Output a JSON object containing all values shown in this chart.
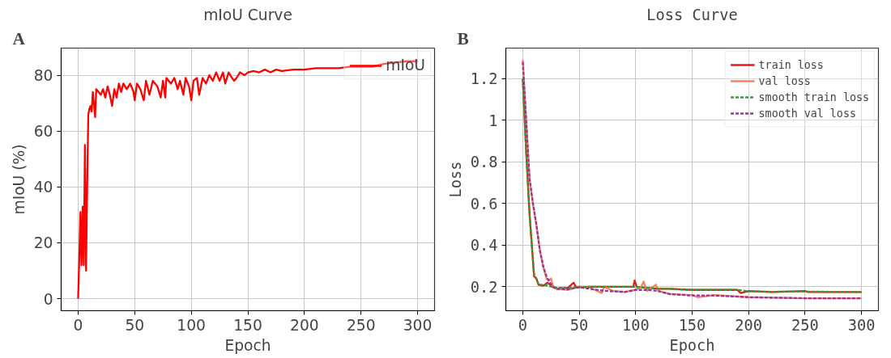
{
  "chart_data": [
    {
      "type": "line",
      "title": "mIoU Curve",
      "xlabel": "Epoch",
      "ylabel": "mIoU (%)",
      "annotations": [
        "A"
      ],
      "xlim": [
        -15,
        315
      ],
      "ylim": [
        -4.3,
        89.7
      ],
      "xticks": [
        0,
        50,
        100,
        150,
        200,
        250,
        300
      ],
      "yticks": [
        0,
        20,
        40,
        60,
        80
      ],
      "grid": true,
      "legend": "top right",
      "line_style": "solid",
      "marker": "none",
      "series": [
        {
          "name": "mIoU",
          "color": "#ff0000",
          "x": [
            0,
            1,
            2,
            3,
            4,
            5,
            6,
            7,
            8,
            9,
            10,
            11,
            12,
            13,
            14,
            15,
            16,
            18,
            20,
            22,
            24,
            26,
            28,
            30,
            32,
            34,
            36,
            38,
            40,
            43,
            46,
            49,
            50,
            52,
            55,
            58,
            60,
            63,
            66,
            70,
            73,
            75,
            77,
            78,
            82,
            85,
            88,
            90,
            93,
            95,
            98,
            100,
            102,
            105,
            107,
            110,
            113,
            116,
            119,
            122,
            125,
            128,
            130,
            133,
            136,
            138,
            140,
            143,
            147,
            150,
            155,
            160,
            165,
            170,
            175,
            180,
            190,
            200,
            210,
            220,
            230,
            240,
            250,
            260,
            270,
            280,
            290,
            300
          ],
          "values": [
            0,
            14,
            31,
            12,
            33,
            12,
            55,
            10,
            40,
            66,
            68,
            69,
            67,
            74,
            70,
            65,
            75,
            74,
            73,
            75,
            72,
            76,
            73,
            69,
            75,
            72,
            77,
            74,
            77,
            75,
            77,
            74,
            71,
            77,
            75,
            71,
            78,
            73,
            78,
            76,
            72,
            78,
            72,
            79,
            77,
            79,
            75,
            78,
            73,
            79,
            76,
            71,
            78,
            79,
            73,
            79,
            77,
            80,
            78,
            81,
            78,
            81,
            77,
            81,
            79,
            78,
            79,
            81,
            80,
            81,
            81.5,
            81,
            82,
            81,
            82,
            81.5,
            82,
            82,
            82.5,
            82.5,
            82.5,
            83,
            83,
            83,
            84,
            84.5,
            85,
            85
          ]
        }
      ]
    },
    {
      "type": "line",
      "title": "Loss Curve",
      "xlabel": "Epoch",
      "ylabel": "Loss",
      "annotations": [
        "B"
      ],
      "xlim": [
        -15,
        315
      ],
      "ylim": [
        0.085,
        1.347
      ],
      "xticks": [
        0,
        50,
        100,
        150,
        200,
        250,
        300
      ],
      "yticks": [
        0.2,
        0.4,
        0.6,
        0.8,
        1.0,
        1.2
      ],
      "grid": true,
      "legend": "top right",
      "marker": "none",
      "series": [
        {
          "name": "train loss",
          "color": "#e41a1c",
          "line_style": "solid",
          "x": [
            0,
            3,
            6,
            8,
            10,
            12,
            14,
            18,
            22,
            26,
            30,
            40,
            45,
            47,
            60,
            70,
            80,
            90,
            98,
            99,
            101,
            110,
            120,
            130,
            150,
            170,
            190,
            193,
            200,
            220,
            250,
            252,
            270,
            300
          ],
          "values": [
            1.2,
            0.85,
            0.55,
            0.4,
            0.25,
            0.24,
            0.21,
            0.205,
            0.22,
            0.2,
            0.19,
            0.195,
            0.22,
            0.2,
            0.2,
            0.2,
            0.2,
            0.2,
            0.2,
            0.23,
            0.2,
            0.195,
            0.19,
            0.19,
            0.185,
            0.185,
            0.185,
            0.17,
            0.18,
            0.175,
            0.18,
            0.175,
            0.175,
            0.175
          ]
        },
        {
          "name": "val loss",
          "color": "#f4845f",
          "line_style": "solid",
          "x": [
            0,
            3,
            6,
            9,
            12,
            15,
            18,
            21,
            23,
            25,
            27,
            30,
            40,
            50,
            60,
            70,
            72,
            80,
            90,
            100,
            105,
            107,
            110,
            118,
            120,
            130,
            150,
            155,
            170,
            200,
            250,
            300
          ],
          "values": [
            1.29,
            1.0,
            0.72,
            0.6,
            0.5,
            0.38,
            0.3,
            0.24,
            0.23,
            0.24,
            0.2,
            0.19,
            0.185,
            0.2,
            0.195,
            0.17,
            0.2,
            0.18,
            0.175,
            0.185,
            0.2,
            0.225,
            0.18,
            0.21,
            0.18,
            0.165,
            0.16,
            0.15,
            0.16,
            0.15,
            0.145,
            0.145
          ]
        },
        {
          "name": "smooth train loss",
          "color": "#2ca02c",
          "line_style": "dashed",
          "x": [
            0,
            3,
            6,
            8,
            10,
            12,
            14,
            18,
            26,
            30,
            40,
            60,
            80,
            100,
            120,
            130,
            150,
            170,
            190,
            200,
            220,
            250,
            300
          ],
          "values": [
            1.2,
            0.85,
            0.55,
            0.4,
            0.26,
            0.24,
            0.21,
            0.21,
            0.2,
            0.195,
            0.195,
            0.2,
            0.2,
            0.2,
            0.19,
            0.19,
            0.185,
            0.185,
            0.185,
            0.178,
            0.176,
            0.177,
            0.175
          ]
        },
        {
          "name": "smooth val loss",
          "color": "#9b30a0",
          "line_style": "dashed",
          "x": [
            0,
            3,
            6,
            9,
            12,
            15,
            18,
            21,
            24,
            27,
            30,
            40,
            50,
            60,
            70,
            80,
            90,
            100,
            110,
            120,
            130,
            150,
            170,
            200,
            250,
            300
          ],
          "values": [
            1.28,
            1.0,
            0.72,
            0.6,
            0.5,
            0.38,
            0.3,
            0.25,
            0.22,
            0.2,
            0.19,
            0.188,
            0.198,
            0.19,
            0.182,
            0.178,
            0.175,
            0.185,
            0.185,
            0.18,
            0.165,
            0.158,
            0.158,
            0.15,
            0.145,
            0.145
          ]
        }
      ]
    }
  ]
}
